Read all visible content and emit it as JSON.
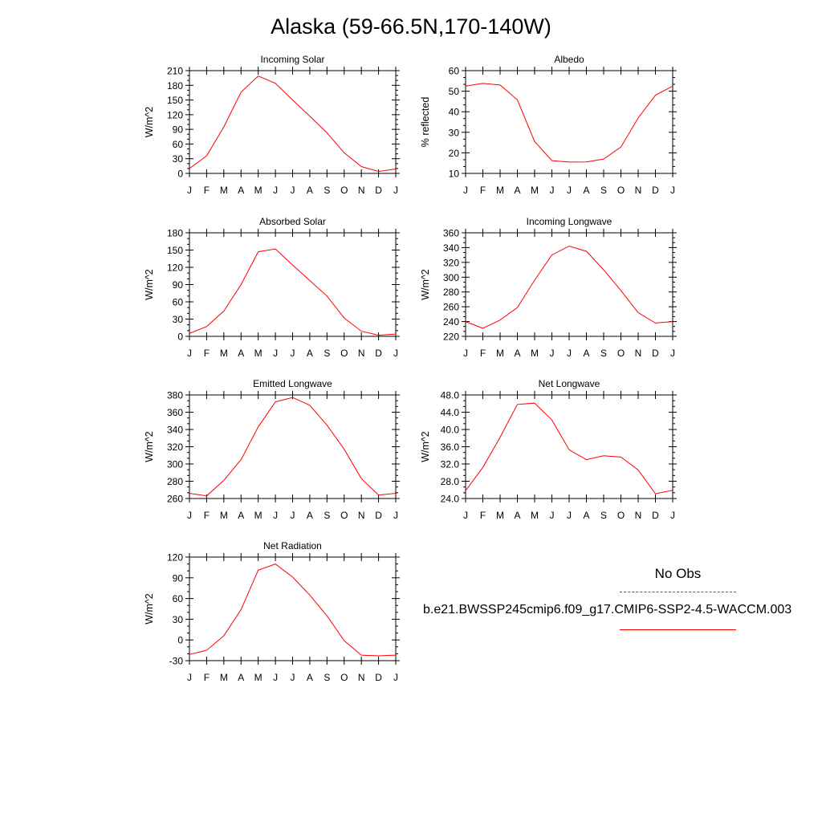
{
  "title": "Alaska (59-66.5N,170-140W)",
  "legend": {
    "obs_label": "No Obs",
    "obs_color": "#4040ff",
    "case_label": "b.e21.BWSSP245cmip6.f09_g17.CMIP6-SSP2-4.5-WACCM.003",
    "case_color": "#ff0000"
  },
  "chart_data": [
    {
      "type": "line",
      "title": "Incoming Solar",
      "ylabel": "W/m^2",
      "xlabel": "",
      "x": [
        "J",
        "F",
        "M",
        "A",
        "M",
        "J",
        "J",
        "A",
        "S",
        "O",
        "N",
        "D",
        "J"
      ],
      "ylim": [
        0,
        210
      ],
      "yticks": [
        "0",
        "30",
        "60",
        "90",
        "120",
        "150",
        "180",
        "210"
      ],
      "grid": false,
      "series": [
        {
          "color": "#ff0000",
          "values": [
            10,
            36,
            95,
            166,
            199,
            184,
            150,
            117,
            83,
            42,
            14,
            4,
            9
          ]
        }
      ]
    },
    {
      "type": "line",
      "title": "Albedo",
      "ylabel": "% reflected",
      "xlabel": "",
      "x": [
        "J",
        "F",
        "M",
        "A",
        "M",
        "J",
        "J",
        "A",
        "S",
        "O",
        "N",
        "D",
        "J"
      ],
      "ylim": [
        10,
        60
      ],
      "yticks": [
        "10",
        "20",
        "30",
        "40",
        "50",
        "60"
      ],
      "grid": false,
      "series": [
        {
          "color": "#ff0000",
          "values": [
            52.5,
            53.8,
            53.0,
            45.8,
            25.5,
            16.2,
            15.5,
            15.6,
            17.0,
            22.8,
            37.0,
            48.0,
            52.5
          ]
        }
      ]
    },
    {
      "type": "line",
      "title": "Absorbed Solar",
      "ylabel": "W/m^2",
      "xlabel": "",
      "x": [
        "J",
        "F",
        "M",
        "A",
        "M",
        "J",
        "J",
        "A",
        "S",
        "O",
        "N",
        "D",
        "J"
      ],
      "ylim": [
        0,
        180
      ],
      "yticks": [
        "0",
        "30",
        "60",
        "90",
        "120",
        "150",
        "180"
      ],
      "grid": false,
      "series": [
        {
          "color": "#ff0000",
          "values": [
            5,
            17,
            44,
            90,
            147,
            152,
            124,
            97,
            70,
            32,
            9,
            2,
            4
          ]
        }
      ]
    },
    {
      "type": "line",
      "title": "Incoming Longwave",
      "ylabel": "W/m^2",
      "xlabel": "",
      "x": [
        "J",
        "F",
        "M",
        "A",
        "M",
        "J",
        "J",
        "A",
        "S",
        "O",
        "N",
        "D",
        "J"
      ],
      "ylim": [
        220,
        360
      ],
      "yticks": [
        "220",
        "240",
        "260",
        "280",
        "300",
        "320",
        "340",
        "360"
      ],
      "grid": false,
      "series": [
        {
          "color": "#ff0000",
          "values": [
            240,
            231,
            242,
            259,
            296,
            330,
            342,
            335,
            310,
            282,
            252,
            238,
            240
          ]
        }
      ]
    },
    {
      "type": "line",
      "title": "Emitted Longwave",
      "ylabel": "W/m^2",
      "xlabel": "",
      "x": [
        "J",
        "F",
        "M",
        "A",
        "M",
        "J",
        "J",
        "A",
        "S",
        "O",
        "N",
        "D",
        "J"
      ],
      "ylim": [
        260,
        380
      ],
      "yticks": [
        "260",
        "280",
        "300",
        "320",
        "340",
        "360",
        "380"
      ],
      "grid": false,
      "series": [
        {
          "color": "#ff0000",
          "values": [
            266,
            263,
            281,
            305,
            343,
            372,
            377,
            368,
            345,
            317,
            283,
            264,
            266
          ]
        }
      ]
    },
    {
      "type": "line",
      "title": "Net Longwave",
      "ylabel": "W/m^2",
      "xlabel": "",
      "x": [
        "J",
        "F",
        "M",
        "A",
        "M",
        "J",
        "J",
        "A",
        "S",
        "O",
        "N",
        "D",
        "J"
      ],
      "ylim": [
        24,
        48
      ],
      "yticks": [
        "24.0",
        "28.0",
        "32.0",
        "36.0",
        "40.0",
        "44.0",
        "48.0"
      ],
      "grid": false,
      "series": [
        {
          "color": "#ff0000",
          "values": [
            25.8,
            31.2,
            38.2,
            45.8,
            46.1,
            42.2,
            35.3,
            33.0,
            33.9,
            33.6,
            30.6,
            25.1,
            25.9
          ]
        }
      ]
    },
    {
      "type": "line",
      "title": "Net Radiation",
      "ylabel": "W/m^2",
      "xlabel": "",
      "x": [
        "J",
        "F",
        "M",
        "A",
        "M",
        "J",
        "J",
        "A",
        "S",
        "O",
        "N",
        "D",
        "J"
      ],
      "ylim": [
        -30,
        120
      ],
      "yticks": [
        "-30",
        "0",
        "30",
        "60",
        "90",
        "120"
      ],
      "grid": false,
      "series": [
        {
          "color": "#ff0000",
          "values": [
            -21,
            -15,
            6,
            44,
            101,
            110,
            91,
            65,
            35,
            -1,
            -22,
            -23,
            -22
          ]
        }
      ]
    }
  ]
}
